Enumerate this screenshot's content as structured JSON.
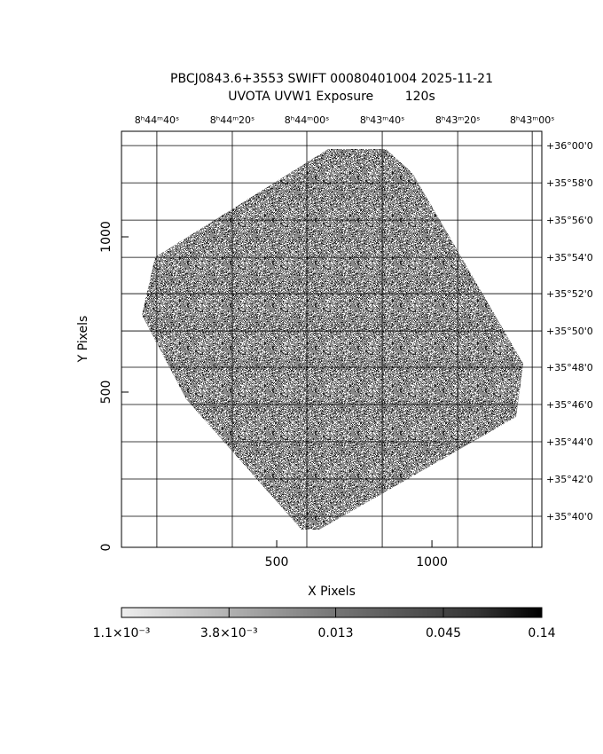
{
  "chart_data": {
    "type": "image",
    "title": "PBCJ0843.6+3553 SWIFT 00080401004 2025-11-21",
    "subtitle": "UVOTA UVW1 Exposure        120s",
    "x_label": "X Pixels",
    "y_label": "Y Pixels",
    "xlim": [
      0,
      1354
    ],
    "ylim": [
      0,
      1340
    ],
    "xticks": [
      500,
      1000
    ],
    "yticks": [
      0,
      500,
      1000
    ],
    "top_ticks": [
      {
        "value": 114,
        "label": "8ʰ44ᵐ40ˢ"
      },
      {
        "value": 357,
        "label": "8ʰ44ᵐ20ˢ"
      },
      {
        "value": 597,
        "label": "8ʰ44ᵐ00ˢ"
      },
      {
        "value": 840,
        "label": "8ʰ43ᵐ40ˢ"
      },
      {
        "value": 1083,
        "label": "8ʰ43ᵐ20ˢ"
      },
      {
        "value": 1323,
        "label": "8ʰ43ᵐ00ˢ"
      }
    ],
    "right_ticks": [
      {
        "value": 1294,
        "label": "+36°00'0"
      },
      {
        "value": 1174,
        "label": "+35°58'0"
      },
      {
        "value": 1054,
        "label": "+35°56'0"
      },
      {
        "value": 934,
        "label": "+35°54'0"
      },
      {
        "value": 817,
        "label": "+35°52'0"
      },
      {
        "value": 697,
        "label": "+35°50'0"
      },
      {
        "value": 580,
        "label": "+35°48'0"
      },
      {
        "value": 460,
        "label": "+35°46'0"
      },
      {
        "value": 340,
        "label": "+35°44'0"
      },
      {
        "value": 220,
        "label": "+35°42'0"
      },
      {
        "value": 100,
        "label": "+35°40'0"
      }
    ],
    "grid": true,
    "colorbar": {
      "lim": [
        0.0011,
        0.14
      ],
      "log": true,
      "ticks": [
        {
          "value": 0.0011,
          "label": "1.1×10⁻³"
        },
        {
          "value": 0.0038,
          "label": "3.8×10⁻³"
        },
        {
          "value": 0.013,
          "label": "0.013"
        },
        {
          "value": 0.045,
          "label": "0.045"
        },
        0.14
      ]
    }
  }
}
